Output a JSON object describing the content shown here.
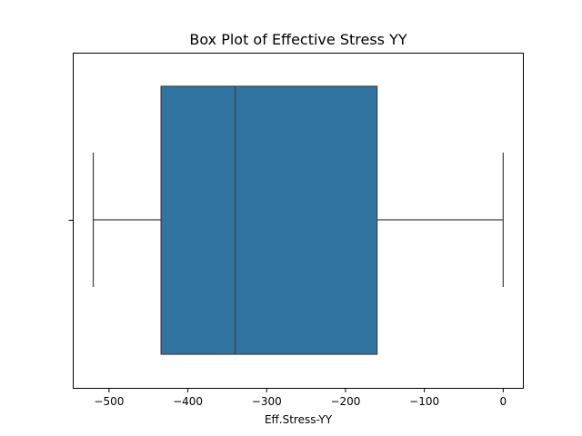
{
  "chart_data": {
    "type": "box",
    "title": "Box Plot of Effective Stress YY",
    "xlabel": "Eff.Stress-YY",
    "ylabel": "",
    "xlim": [
      -546,
      25
    ],
    "xticks": [
      -500,
      -400,
      -300,
      -200,
      -100,
      0
    ],
    "xtick_labels": [
      "−500",
      "−400",
      "−300",
      "−200",
      "−100",
      "0"
    ],
    "grid": false,
    "orientation": "horizontal",
    "box": {
      "whisker_low": -520,
      "q1": -434,
      "median": -340,
      "q3": -160,
      "whisker_high": 0
    },
    "colors": {
      "box_fill": "#3274a1",
      "lines": "#3f3f3f",
      "axes": "#000000"
    }
  }
}
